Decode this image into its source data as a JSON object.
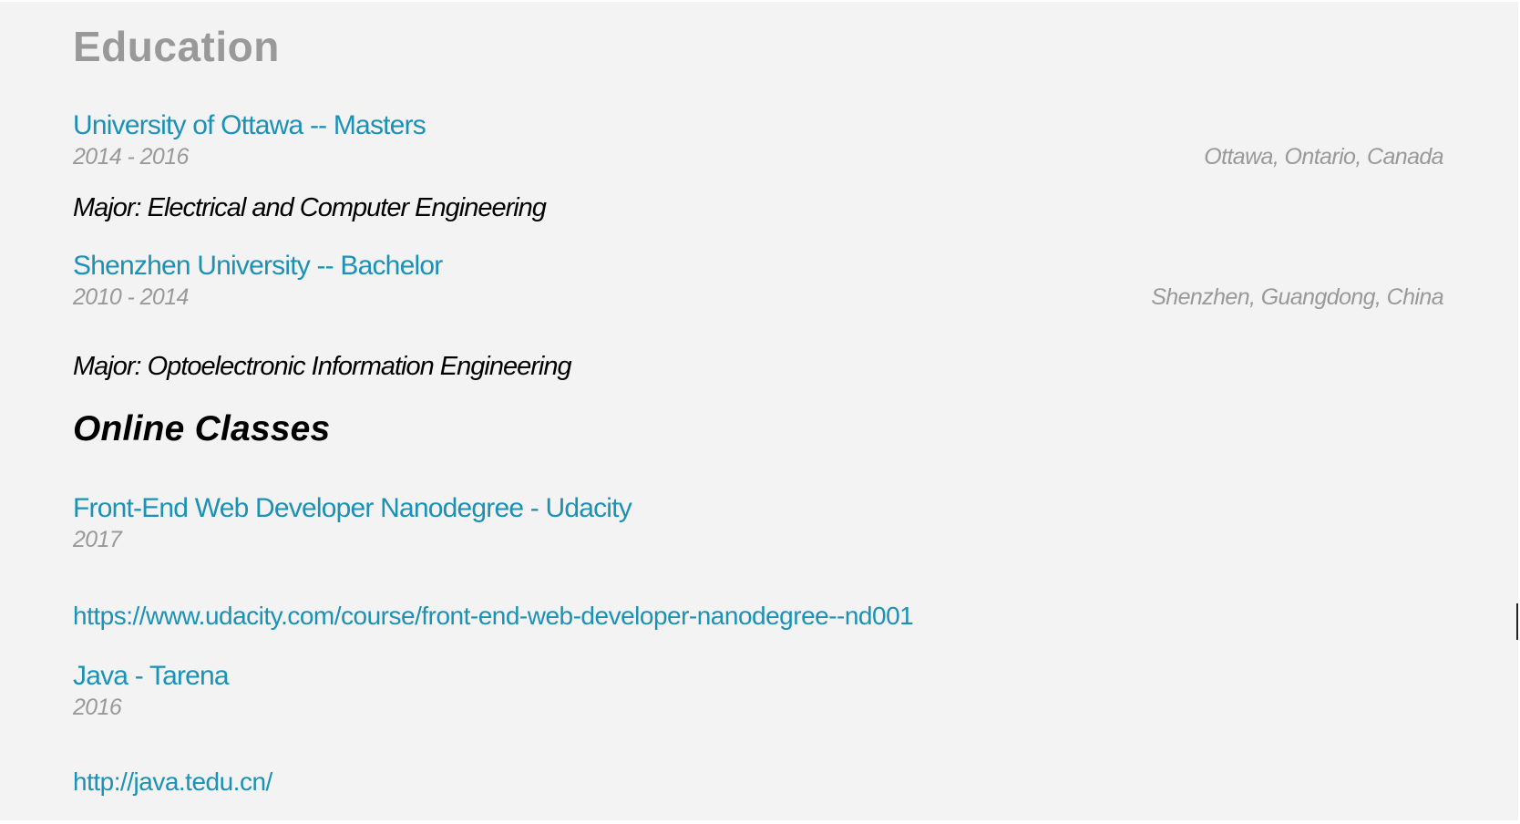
{
  "education": {
    "title": "Education",
    "schools": [
      {
        "name": "University of Ottawa -- Masters",
        "dates": "2014 - 2016",
        "location": "Ottawa, Ontario, Canada",
        "major": "Major: Electrical and Computer Engineering"
      },
      {
        "name": "Shenzhen University -- Bachelor",
        "dates": "2010 - 2014",
        "location": "Shenzhen, Guangdong, China",
        "major": "Major: Optoelectronic Information Engineering"
      }
    ]
  },
  "online_classes": {
    "title": "Online Classes",
    "courses": [
      {
        "title": "Front-End Web Developer Nanodegree - Udacity",
        "dates": "2017",
        "url": "https://www.udacity.com/course/front-end-web-developer-nanodegree--nd001"
      },
      {
        "title": "Java - Tarena",
        "dates": "2016",
        "url": "http://java.tedu.cn/"
      }
    ]
  }
}
